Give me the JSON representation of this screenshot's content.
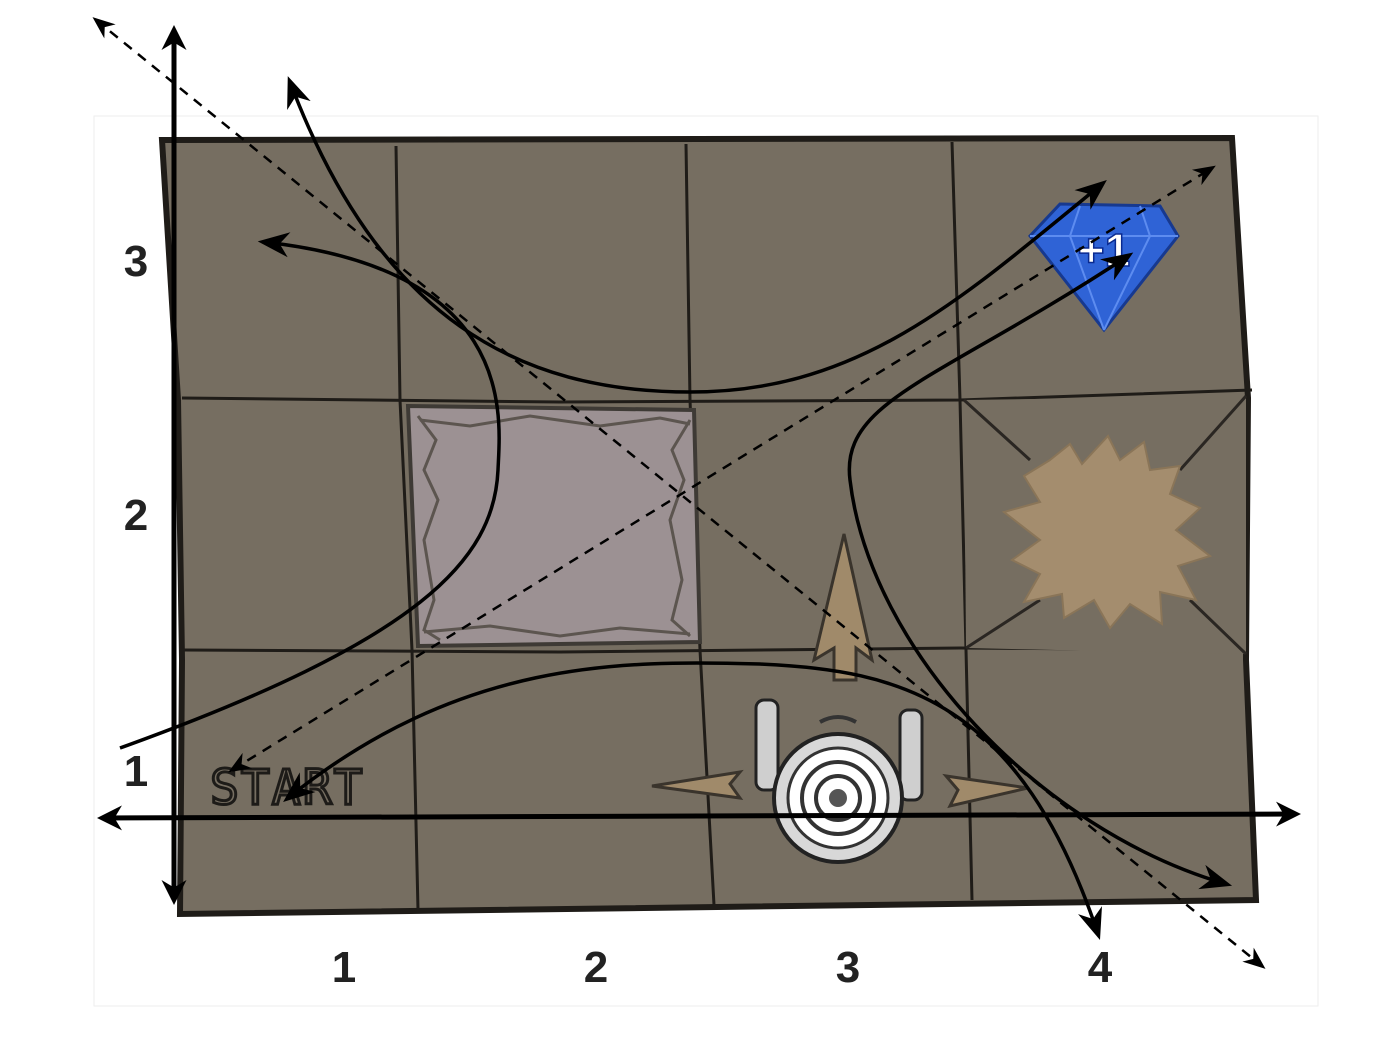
{
  "board": {
    "columns": 4,
    "rows": 3,
    "start_label": "START",
    "colors": {
      "floor": "#766e61",
      "grid_line": "#1f1c18",
      "pit": "#9c9193",
      "pit_border": "#5c554f",
      "trap": "#a48d6e",
      "gem": "#2f63d6",
      "hint_arrow": "#a08a6a"
    },
    "tiles": [
      {
        "col": 2,
        "row": 2,
        "type": "stone-pit"
      },
      {
        "col": 4,
        "row": 2,
        "type": "trap-splat"
      },
      {
        "col": 4,
        "row": 3,
        "type": "gem"
      },
      {
        "col": 3,
        "row": 1,
        "type": "robot"
      },
      {
        "col": 1,
        "row": 1,
        "type": "start"
      }
    ]
  },
  "gem": {
    "label": "+1"
  },
  "robot": {
    "icon": "robot-topdown-icon",
    "direction_hints": [
      "up",
      "left",
      "right"
    ]
  },
  "axes": {
    "x_ticks": [
      "1",
      "2",
      "3",
      "4"
    ],
    "y_ticks": [
      "1",
      "2",
      "3"
    ]
  },
  "overlay": {
    "dashed_diagonals": 2,
    "hyperbola_branches": 4,
    "style": "hand-drawn-arrows"
  }
}
